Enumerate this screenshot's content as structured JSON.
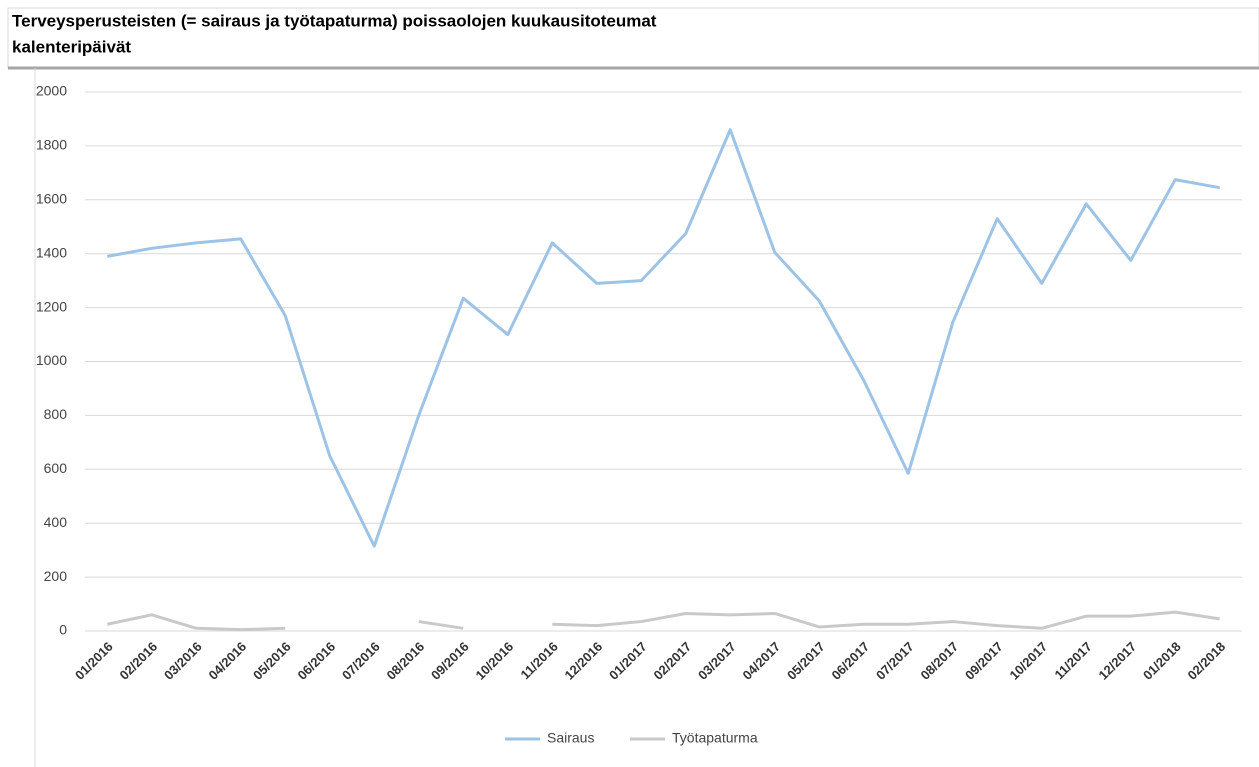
{
  "chart_data": {
    "type": "line",
    "title": [
      "Terveysperusteisten (= sairaus ja työtapaturma) poissaolojen kuukausitoteumat",
      "kalenteripäivät"
    ],
    "categories": [
      "01/2016",
      "02/2016",
      "03/2016",
      "04/2016",
      "05/2016",
      "06/2016",
      "07/2016",
      "08/2016",
      "09/2016",
      "10/2016",
      "11/2016",
      "12/2016",
      "01/2017",
      "02/2017",
      "03/2017",
      "04/2017",
      "05/2017",
      "06/2017",
      "07/2017",
      "08/2017",
      "09/2017",
      "10/2017",
      "11/2017",
      "12/2017",
      "01/2018",
      "02/2018"
    ],
    "series": [
      {
        "name": "Sairaus",
        "color": "#9dc3e6",
        "values": [
          1390,
          1420,
          1440,
          1455,
          1170,
          650,
          315,
          800,
          1235,
          1100,
          1440,
          1290,
          1300,
          1475,
          1860,
          1405,
          1225,
          930,
          585,
          1145,
          1530,
          1290,
          1585,
          1375,
          1675,
          1645
        ]
      },
      {
        "name": "Työtapaturma",
        "color": "#c9c9c9",
        "values": [
          25,
          60,
          10,
          5,
          10,
          null,
          null,
          35,
          10,
          null,
          25,
          20,
          35,
          65,
          60,
          65,
          15,
          25,
          25,
          35,
          20,
          10,
          55,
          55,
          70,
          45
        ]
      }
    ],
    "ylim": [
      0,
      2000
    ],
    "yticks": [
      0,
      200,
      400,
      600,
      800,
      1000,
      1200,
      1400,
      1600,
      1800,
      2000
    ],
    "grid": true,
    "legend": "bottom"
  }
}
